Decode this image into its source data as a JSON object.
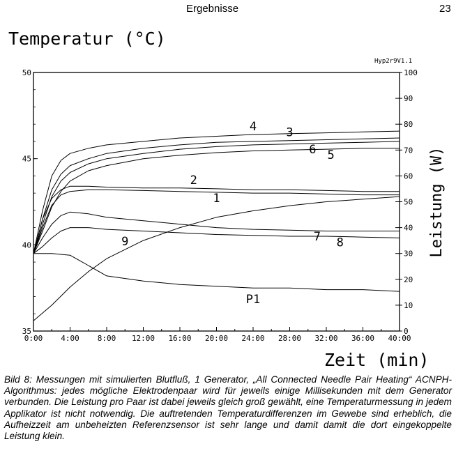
{
  "page": {
    "header_title": "Ergebnisse",
    "page_number": "23",
    "caption": "Bild 8: Messungen mit simulierten Blutfluß, 1 Generator, „All Connected Needle Pair Heating“ ACNPH-Algorithmus: jedes mögliche Elektrodenpaar wird für jeweils einige Millisekunden mit dem Generator verbunden. Die Leistung pro Paar ist dabei jeweils gleich groß gewählt, eine Temperaturmessung in jedem Applikator ist nicht notwendig. Die auftretenden Temperaturdifferenzen im Gewebe sind erheblich, die Aufheizzeit am unbeheizten Referenzsensor ist sehr lange und damit damit die dort eingekoppelte Leistung klein."
  },
  "chart_data": {
    "type": "line",
    "title": "",
    "plot_id": "Hyp2r9V1.1",
    "ylabel": "Temperatur (°C)",
    "y2label": "Leistung (W)",
    "xlabel": "Zeit (min)",
    "xlim": [
      0,
      40
    ],
    "ylim": [
      35,
      50
    ],
    "y2lim": [
      0,
      100
    ],
    "x_ticks": [
      "0:00",
      "4:00",
      "8:00",
      "12:00",
      "16:00",
      "20:00",
      "24:00",
      "28:00",
      "32:00",
      "36:00",
      "40:00"
    ],
    "y_ticks": [
      "35",
      "40",
      "45",
      "50"
    ],
    "y2_ticks": [
      "0",
      "10",
      "20",
      "30",
      "40",
      "50",
      "60",
      "70",
      "80",
      "90",
      "100"
    ],
    "grid": false,
    "series": [
      {
        "name": "4",
        "axis": "left",
        "x": [
          0,
          1,
          2,
          3,
          4,
          6,
          8,
          12,
          16,
          20,
          24,
          28,
          32,
          36,
          40
        ],
        "values": [
          39.5,
          42.0,
          44.0,
          44.9,
          45.3,
          45.6,
          45.8,
          46.0,
          46.2,
          46.3,
          46.4,
          46.45,
          46.5,
          46.55,
          46.6
        ],
        "label_at": 24
      },
      {
        "name": "3",
        "axis": "left",
        "x": [
          0,
          1,
          2,
          3,
          4,
          6,
          8,
          12,
          16,
          20,
          24,
          28,
          32,
          36,
          40
        ],
        "values": [
          39.5,
          41.5,
          43.2,
          44.1,
          44.6,
          45.0,
          45.3,
          45.6,
          45.8,
          45.95,
          46.0,
          46.05,
          46.1,
          46.15,
          46.2
        ],
        "label_at": 28
      },
      {
        "name": "6",
        "axis": "left",
        "x": [
          0,
          1,
          2,
          3,
          4,
          6,
          8,
          12,
          16,
          20,
          24,
          28,
          32,
          36,
          40
        ],
        "values": [
          39.5,
          41.2,
          42.8,
          43.7,
          44.2,
          44.7,
          45.0,
          45.3,
          45.55,
          45.7,
          45.8,
          45.85,
          45.9,
          45.95,
          46.0
        ],
        "label_at": 30.5
      },
      {
        "name": "5",
        "axis": "left",
        "x": [
          0,
          1,
          2,
          3,
          4,
          6,
          8,
          12,
          16,
          20,
          24,
          28,
          32,
          36,
          40
        ],
        "values": [
          39.5,
          40.8,
          42.2,
          43.1,
          43.7,
          44.3,
          44.6,
          45.0,
          45.2,
          45.35,
          45.45,
          45.5,
          45.55,
          45.6,
          45.6
        ],
        "label_at": 32.5
      },
      {
        "name": "2",
        "axis": "left",
        "x": [
          0,
          1,
          2,
          3,
          4,
          6,
          8,
          12,
          16,
          20,
          24,
          28,
          32,
          36,
          40
        ],
        "values": [
          39.5,
          41.5,
          42.7,
          43.2,
          43.4,
          43.4,
          43.35,
          43.3,
          43.3,
          43.25,
          43.2,
          43.2,
          43.15,
          43.1,
          43.1
        ],
        "label_at": 17.5
      },
      {
        "name": "1",
        "axis": "left",
        "x": [
          0,
          1,
          2,
          3,
          4,
          6,
          8,
          12,
          16,
          20,
          24,
          28,
          32,
          36,
          40
        ],
        "values": [
          39.5,
          41.0,
          42.3,
          42.9,
          43.1,
          43.2,
          43.2,
          43.15,
          43.1,
          43.05,
          43.0,
          43.0,
          42.95,
          42.9,
          42.9
        ],
        "label_at": 20
      },
      {
        "name": "7",
        "axis": "left",
        "x": [
          0,
          1,
          2,
          3,
          4,
          6,
          8,
          12,
          16,
          20,
          24,
          28,
          32,
          36,
          40
        ],
        "values": [
          39.5,
          40.4,
          41.2,
          41.7,
          41.9,
          41.8,
          41.6,
          41.4,
          41.2,
          41.0,
          40.9,
          40.85,
          40.8,
          40.8,
          40.8
        ],
        "label_at": 31
      },
      {
        "name": "8",
        "axis": "left",
        "x": [
          0,
          1,
          2,
          3,
          4,
          6,
          8,
          12,
          16,
          20,
          24,
          28,
          32,
          36,
          40
        ],
        "values": [
          39.5,
          39.9,
          40.4,
          40.8,
          41.0,
          41.0,
          40.9,
          40.8,
          40.7,
          40.6,
          40.55,
          40.5,
          40.5,
          40.45,
          40.4
        ],
        "label_at": 33.5
      },
      {
        "name": "P1",
        "axis": "left",
        "x": [
          0,
          2,
          4,
          5,
          6,
          8,
          12,
          16,
          20,
          24,
          28,
          32,
          36,
          40
        ],
        "values": [
          39.5,
          39.5,
          39.4,
          39.1,
          38.8,
          38.2,
          37.9,
          37.7,
          37.6,
          37.5,
          37.5,
          37.4,
          37.4,
          37.3
        ],
        "label_at": 24
      },
      {
        "name": "9",
        "axis": "right",
        "x": [
          0,
          2,
          4,
          6,
          8,
          12,
          16,
          20,
          24,
          28,
          32,
          36,
          40
        ],
        "values": [
          4,
          10,
          17,
          23,
          28,
          35,
          40,
          44,
          46.5,
          48.5,
          50,
          51,
          52
        ],
        "label_at": 10
      }
    ]
  }
}
